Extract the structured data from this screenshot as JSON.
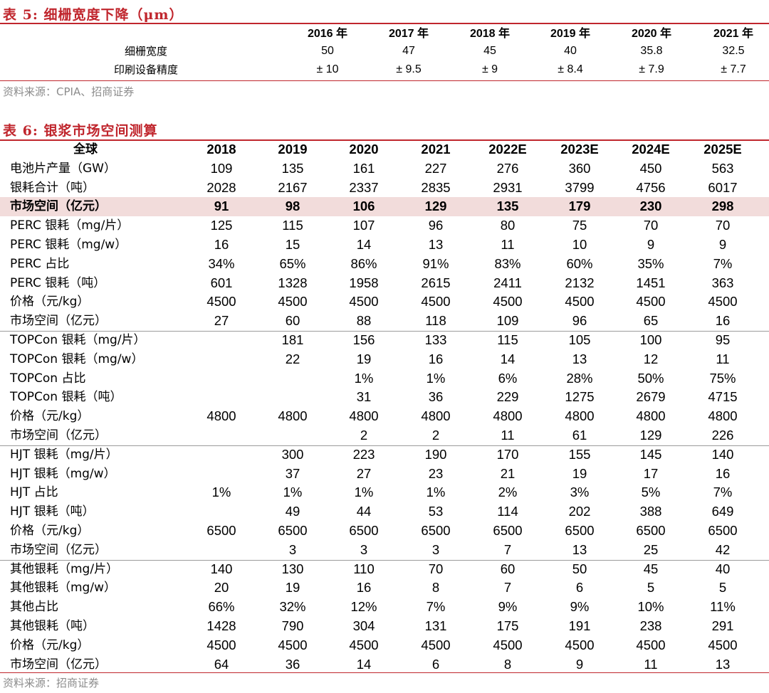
{
  "table5": {
    "title": "表 5:  细栅宽度下降（μm）",
    "header": [
      "2016 年",
      "2017 年",
      "2018 年",
      "2019 年",
      "2020 年",
      "2021 年"
    ],
    "rows": [
      {
        "label": "细栅宽度",
        "values": [
          "50",
          "47",
          "45",
          "40",
          "35.8",
          "32.5"
        ]
      },
      {
        "label": "印刷设备精度",
        "values": [
          "± 10",
          "± 9.5",
          "± 9",
          "± 8.4",
          "± 7.9",
          "± 7.7"
        ]
      }
    ],
    "source": "资料来源：CPIA、招商证券"
  },
  "table6": {
    "title": "表 6:  银浆市场空间测算",
    "header_label": "全球",
    "header": [
      "2018",
      "2019",
      "2020",
      "2021",
      "2022E",
      "2023E",
      "2024E",
      "2025E"
    ],
    "rows": [
      {
        "label": "电池片产量（GW）",
        "values": [
          "109",
          "135",
          "161",
          "227",
          "276",
          "360",
          "450",
          "563"
        ]
      },
      {
        "label": "银耗合计（吨）",
        "values": [
          "2028",
          "2167",
          "2337",
          "2835",
          "2931",
          "3799",
          "4756",
          "6017"
        ]
      },
      {
        "label": "市场空间（亿元）",
        "values": [
          "91",
          "98",
          "106",
          "129",
          "135",
          "179",
          "230",
          "298"
        ],
        "highlight": true
      },
      {
        "label": "PERC 银耗（mg/片）",
        "values": [
          "125",
          "115",
          "107",
          "96",
          "80",
          "75",
          "70",
          "70"
        ]
      },
      {
        "label": "PERC 银耗（mg/w）",
        "values": [
          "16",
          "15",
          "14",
          "13",
          "11",
          "10",
          "9",
          "9"
        ]
      },
      {
        "label": "PERC 占比",
        "values": [
          "34%",
          "65%",
          "86%",
          "91%",
          "83%",
          "60%",
          "35%",
          "7%"
        ]
      },
      {
        "label": "PERC 银耗（吨）",
        "values": [
          "601",
          "1328",
          "1958",
          "2615",
          "2411",
          "2132",
          "1451",
          "363"
        ]
      },
      {
        "label": "价格（元/kg）",
        "values": [
          "4500",
          "4500",
          "4500",
          "4500",
          "4500",
          "4500",
          "4500",
          "4500"
        ]
      },
      {
        "label": "市场空间（亿元）",
        "values": [
          "27",
          "60",
          "88",
          "118",
          "109",
          "96",
          "65",
          "16"
        ],
        "divider_after": true
      },
      {
        "label": "TOPCon 银耗（mg/片）",
        "values": [
          "",
          "181",
          "156",
          "133",
          "115",
          "105",
          "100",
          "95"
        ]
      },
      {
        "label": "TOPCon 银耗（mg/w）",
        "values": [
          "",
          "22",
          "19",
          "16",
          "14",
          "13",
          "12",
          "11"
        ]
      },
      {
        "label": "TOPCon 占比",
        "values": [
          "",
          "",
          "1%",
          "1%",
          "6%",
          "28%",
          "50%",
          "75%"
        ]
      },
      {
        "label": "TOPCon 银耗（吨）",
        "values": [
          "",
          "",
          "31",
          "36",
          "229",
          "1275",
          "2679",
          "4715"
        ]
      },
      {
        "label": "价格（元/kg）",
        "values": [
          "4800",
          "4800",
          "4800",
          "4800",
          "4800",
          "4800",
          "4800",
          "4800"
        ]
      },
      {
        "label": "市场空间（亿元）",
        "values": [
          "",
          "",
          "2",
          "2",
          "11",
          "61",
          "129",
          "226"
        ],
        "divider_after": true
      },
      {
        "label": "HJT 银耗（mg/片）",
        "values": [
          "",
          "300",
          "223",
          "190",
          "170",
          "155",
          "145",
          "140"
        ]
      },
      {
        "label": "HJT 银耗（mg/w）",
        "values": [
          "",
          "37",
          "27",
          "23",
          "21",
          "19",
          "17",
          "16"
        ]
      },
      {
        "label": "HJT 占比",
        "values": [
          "1%",
          "1%",
          "1%",
          "1%",
          "2%",
          "3%",
          "5%",
          "7%"
        ]
      },
      {
        "label": "HJT 银耗（吨）",
        "values": [
          "",
          "49",
          "44",
          "53",
          "114",
          "202",
          "388",
          "649"
        ]
      },
      {
        "label": "价格（元/kg）",
        "values": [
          "6500",
          "6500",
          "6500",
          "6500",
          "6500",
          "6500",
          "6500",
          "6500"
        ]
      },
      {
        "label": "市场空间（亿元）",
        "values": [
          "",
          "3",
          "3",
          "3",
          "7",
          "13",
          "25",
          "42"
        ],
        "divider_after": true
      },
      {
        "label": "其他银耗（mg/片）",
        "values": [
          "140",
          "130",
          "110",
          "70",
          "60",
          "50",
          "45",
          "40"
        ]
      },
      {
        "label": "其他银耗（mg/w）",
        "values": [
          "20",
          "19",
          "16",
          "8",
          "7",
          "6",
          "5",
          "5"
        ]
      },
      {
        "label": "其他占比",
        "values": [
          "66%",
          "32%",
          "12%",
          "7%",
          "9%",
          "9%",
          "10%",
          "11%"
        ]
      },
      {
        "label": "其他银耗（吨）",
        "values": [
          "1428",
          "790",
          "304",
          "131",
          "175",
          "191",
          "238",
          "291"
        ]
      },
      {
        "label": "价格（元/kg）",
        "values": [
          "4500",
          "4500",
          "4500",
          "4500",
          "4500",
          "4500",
          "4500",
          "4500"
        ]
      },
      {
        "label": "市场空间（亿元）",
        "values": [
          "64",
          "36",
          "14",
          "6",
          "8",
          "9",
          "11",
          "13"
        ]
      }
    ],
    "source": "资料来源：招商证券"
  },
  "colors": {
    "accent": "#c0262d",
    "highlight": "#f2dcdb",
    "source_text": "#8c8c8c"
  }
}
